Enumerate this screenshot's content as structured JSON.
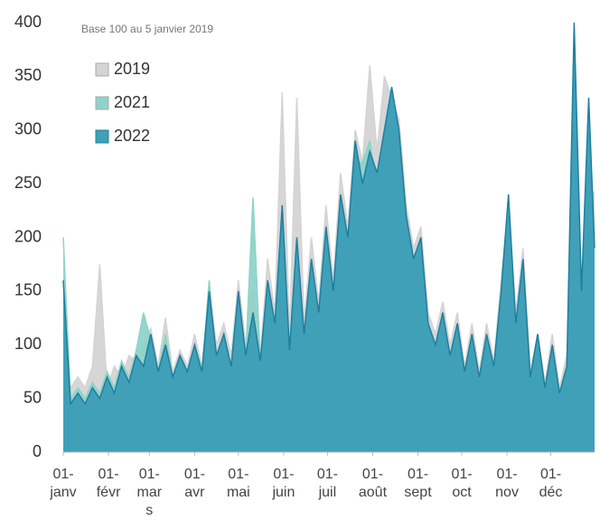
{
  "chart_data": {
    "type": "area",
    "subtitle": "Base 100 au 5 janvier 2019",
    "x": [
      0,
      5,
      10,
      15,
      20,
      25,
      30,
      35,
      40,
      45,
      50,
      55,
      60,
      65,
      70,
      75,
      80,
      85,
      90,
      95,
      100,
      105,
      110,
      115,
      120,
      125,
      130,
      135,
      140,
      145,
      150,
      155,
      160,
      165,
      170,
      175,
      180,
      185,
      190,
      195,
      200,
      205,
      210,
      215,
      220,
      225,
      230,
      235,
      240,
      245,
      250,
      255,
      260,
      265,
      270,
      275,
      280,
      285,
      290,
      295,
      300,
      305,
      310,
      315,
      320,
      325,
      330,
      335,
      340,
      345,
      350,
      355,
      360,
      364
    ],
    "xlim": [
      0,
      364
    ],
    "xticks": [
      {
        "value": 0,
        "label": "01-janv"
      },
      {
        "value": 31,
        "label": "01-févr"
      },
      {
        "value": 59,
        "label": "01-mars"
      },
      {
        "value": 90,
        "label": "01-avr"
      },
      {
        "value": 120,
        "label": "01-mai"
      },
      {
        "value": 151,
        "label": "01-juin"
      },
      {
        "value": 181,
        "label": "01-juil"
      },
      {
        "value": 212,
        "label": "01-août"
      },
      {
        "value": 243,
        "label": "01-sept"
      },
      {
        "value": 273,
        "label": "01-oct"
      },
      {
        "value": 304,
        "label": "01-nov"
      },
      {
        "value": 334,
        "label": "01-déc"
      }
    ],
    "ylim": [
      0,
      400
    ],
    "yticks": [
      0,
      50,
      100,
      150,
      200,
      250,
      300,
      350,
      400
    ],
    "legend": "upper left",
    "series": [
      {
        "name": "2019",
        "color": "#d4d4d4",
        "values": [
          110,
          60,
          70,
          60,
          80,
          175,
          60,
          80,
          70,
          90,
          85,
          100,
          115,
          80,
          125,
          75,
          95,
          80,
          110,
          80,
          150,
          100,
          120,
          90,
          160,
          100,
          150,
          90,
          180,
          130,
          335,
          110,
          330,
          120,
          200,
          140,
          230,
          160,
          260,
          210,
          300,
          270,
          360,
          280,
          350,
          330,
          310,
          230,
          190,
          210,
          130,
          110,
          140,
          100,
          130,
          80,
          120,
          75,
          120,
          85,
          160,
          230,
          130,
          190,
          75,
          110,
          65,
          110,
          60,
          90,
          110,
          120,
          250,
          240
        ]
      },
      {
        "name": "2021",
        "color": "#8fd3c8",
        "values": [
          200,
          50,
          60,
          50,
          65,
          55,
          75,
          60,
          85,
          70,
          95,
          130,
          105,
          75,
          110,
          70,
          90,
          75,
          100,
          75,
          160,
          85,
          110,
          80,
          140,
          90,
          237,
          85,
          150,
          110,
          210,
          90,
          190,
          100,
          170,
          120,
          200,
          140,
          230,
          190,
          270,
          270,
          290,
          250,
          290,
          310,
          290,
          210,
          170,
          190,
          110,
          90,
          120,
          85,
          110,
          70,
          100,
          65,
          100,
          75,
          140,
          220,
          110,
          170,
          65,
          100,
          55,
          90,
          50,
          75,
          110,
          140,
          300,
          200
        ]
      },
      {
        "name": "2022",
        "color": "#3fa0b8",
        "values": [
          160,
          45,
          55,
          45,
          60,
          50,
          70,
          55,
          80,
          65,
          90,
          80,
          110,
          75,
          100,
          70,
          90,
          75,
          100,
          75,
          150,
          90,
          110,
          80,
          150,
          90,
          130,
          85,
          160,
          120,
          230,
          95,
          200,
          110,
          180,
          130,
          210,
          150,
          240,
          200,
          290,
          250,
          280,
          260,
          300,
          340,
          300,
          220,
          180,
          200,
          120,
          100,
          130,
          90,
          120,
          75,
          110,
          70,
          110,
          80,
          150,
          240,
          120,
          180,
          70,
          110,
          60,
          100,
          55,
          80,
          400,
          150,
          330,
          190
        ]
      }
    ]
  }
}
